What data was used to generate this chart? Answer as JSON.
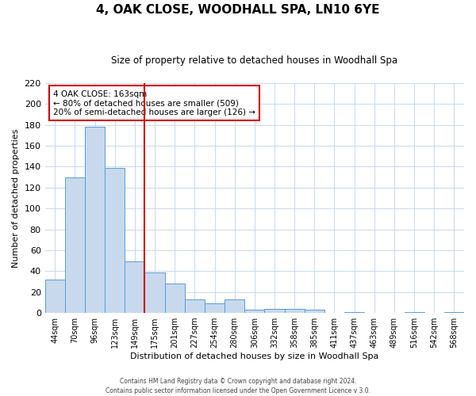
{
  "title": "4, OAK CLOSE, WOODHALL SPA, LN10 6YE",
  "subtitle": "Size of property relative to detached houses in Woodhall Spa",
  "xlabel": "Distribution of detached houses by size in Woodhall Spa",
  "ylabel": "Number of detached properties",
  "bar_color": "#c8d9ed",
  "bar_edge_color": "#5b9bd5",
  "background_color": "#ffffff",
  "grid_color": "#c8d9ed",
  "bin_labels": [
    "44sqm",
    "70sqm",
    "96sqm",
    "123sqm",
    "149sqm",
    "175sqm",
    "201sqm",
    "227sqm",
    "254sqm",
    "280sqm",
    "306sqm",
    "332sqm",
    "358sqm",
    "385sqm",
    "411sqm",
    "437sqm",
    "463sqm",
    "489sqm",
    "516sqm",
    "542sqm",
    "568sqm"
  ],
  "bar_heights": [
    32,
    130,
    178,
    139,
    49,
    39,
    28,
    13,
    9,
    13,
    3,
    4,
    4,
    3,
    0,
    1,
    0,
    0,
    1,
    0,
    1
  ],
  "vline_x_index": 5,
  "vline_color": "#cc0000",
  "annotation_title": "4 OAK CLOSE: 163sqm",
  "annotation_line1": "← 80% of detached houses are smaller (509)",
  "annotation_line2": "20% of semi-detached houses are larger (126) →",
  "annotation_box_color": "#ffffff",
  "annotation_box_edge": "#cc0000",
  "footer1": "Contains HM Land Registry data © Crown copyright and database right 2024.",
  "footer2": "Contains public sector information licensed under the Open Government Licence v 3.0.",
  "ylim": [
    0,
    220
  ],
  "yticks": [
    0,
    20,
    40,
    60,
    80,
    100,
    120,
    140,
    160,
    180,
    200,
    220
  ]
}
